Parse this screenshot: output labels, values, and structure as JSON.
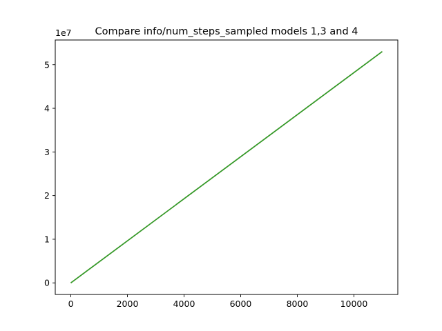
{
  "chart_data": {
    "type": "line",
    "title": "Compare info/num_steps_sampled models 1,3 and 4",
    "xlabel": "",
    "ylabel": "",
    "y_offset_label": "1e7",
    "xlim": [
      -550,
      11550
    ],
    "ylim": [
      -2650000,
      55650000
    ],
    "x_ticks": [
      0,
      2000,
      4000,
      6000,
      8000,
      10000
    ],
    "x_tick_labels": [
      "0",
      "2000",
      "4000",
      "6000",
      "8000",
      "10000"
    ],
    "y_ticks": [
      0,
      10000000,
      20000000,
      30000000,
      40000000,
      50000000
    ],
    "y_tick_labels": [
      "0",
      "1",
      "2",
      "3",
      "4",
      "5"
    ],
    "grid": false,
    "series": [
      {
        "color": "#1f77b4",
        "x": [
          0,
          11000
        ],
        "y": [
          0,
          53000000
        ]
      },
      {
        "color": "#ff7f0e",
        "x": [
          0,
          11000
        ],
        "y": [
          0,
          53000000
        ]
      },
      {
        "color": "#2ca02c",
        "x": [
          0,
          11000
        ],
        "y": [
          0,
          53000000
        ]
      }
    ]
  }
}
